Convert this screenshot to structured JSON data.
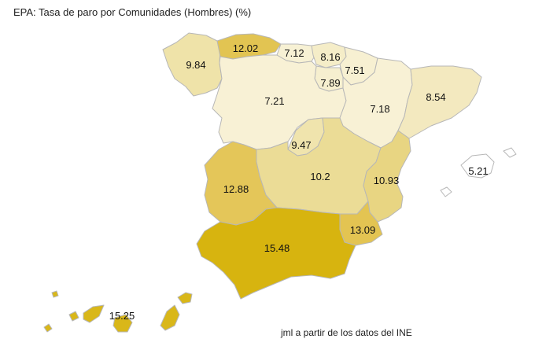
{
  "title": "EPA: Tasa de paro por Comunidades (Hombres) (%)",
  "source": "jml a partir de los datos del INE",
  "color_scale": {
    "low": "#f6efcf",
    "high": "#d4b20a"
  },
  "regions": [
    {
      "id": "galicia",
      "value": 9.84,
      "label": "9.84",
      "color": "#efe3a9"
    },
    {
      "id": "asturias",
      "value": 12.02,
      "label": "12.02",
      "color": "#e2c452"
    },
    {
      "id": "cantabria",
      "value": 7.12,
      "label": "7.12",
      "color": "#f7f1d4"
    },
    {
      "id": "pais-vasco",
      "value": 8.16,
      "label": "8.16",
      "color": "#f5edc8"
    },
    {
      "id": "navarra",
      "value": 7.51,
      "label": "7.51",
      "color": "#f7f0d2"
    },
    {
      "id": "la-rioja",
      "value": 7.89,
      "label": "7.89",
      "color": "#f6efcf"
    },
    {
      "id": "castilla-y-leon",
      "value": 7.21,
      "label": "7.21",
      "color": "#f8f1d5"
    },
    {
      "id": "aragon",
      "value": 7.18,
      "label": "7.18",
      "color": "#f8f1d5"
    },
    {
      "id": "cataluna",
      "value": 8.54,
      "label": "8.54",
      "color": "#f3e9bf"
    },
    {
      "id": "baleares",
      "value": 5.21,
      "label": "5.21",
      "color": "#ffffff"
    },
    {
      "id": "madrid",
      "value": 9.47,
      "label": "9.47",
      "color": "#f0e4ad"
    },
    {
      "id": "castilla-la-mancha",
      "value": 10.2,
      "label": "10.2",
      "color": "#ebdc96"
    },
    {
      "id": "valencia",
      "value": 10.93,
      "label": "10.93",
      "color": "#e8d582"
    },
    {
      "id": "extremadura",
      "value": 12.88,
      "label": "12.88",
      "color": "#e4c659"
    },
    {
      "id": "murcia",
      "value": 13.09,
      "label": "13.09",
      "color": "#e3c452"
    },
    {
      "id": "andalucia",
      "value": 15.48,
      "label": "15.48",
      "color": "#d7b40f"
    },
    {
      "id": "canarias",
      "value": 15.25,
      "label": "15.25",
      "color": "#d9b719"
    }
  ]
}
